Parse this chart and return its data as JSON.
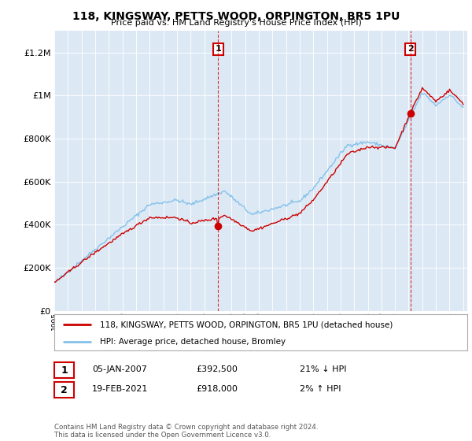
{
  "title": "118, KINGSWAY, PETTS WOOD, ORPINGTON, BR5 1PU",
  "subtitle": "Price paid vs. HM Land Registry's House Price Index (HPI)",
  "background_color": "#dce9f5",
  "hpi_color": "#85c1e9",
  "sale_color": "#cc0000",
  "annotation_box_color": "#cc0000",
  "sale1_year": 2007.03,
  "sale1_price": 392500,
  "sale2_year": 2021.13,
  "sale2_price": 918000,
  "legend_entry1": "118, KINGSWAY, PETTS WOOD, ORPINGTON, BR5 1PU (detached house)",
  "legend_entry2": "HPI: Average price, detached house, Bromley",
  "note1_date": "05-JAN-2007",
  "note1_price": "£392,500",
  "note1_hpi": "21% ↓ HPI",
  "note2_date": "19-FEB-2021",
  "note2_price": "£918,000",
  "note2_hpi": "2% ↑ HPI",
  "footer": "Contains HM Land Registry data © Crown copyright and database right 2024.\nThis data is licensed under the Open Government Licence v3.0.",
  "ylim": [
    0,
    1300000
  ],
  "yticks": [
    0,
    200000,
    400000,
    600000,
    800000,
    1000000,
    1200000
  ]
}
